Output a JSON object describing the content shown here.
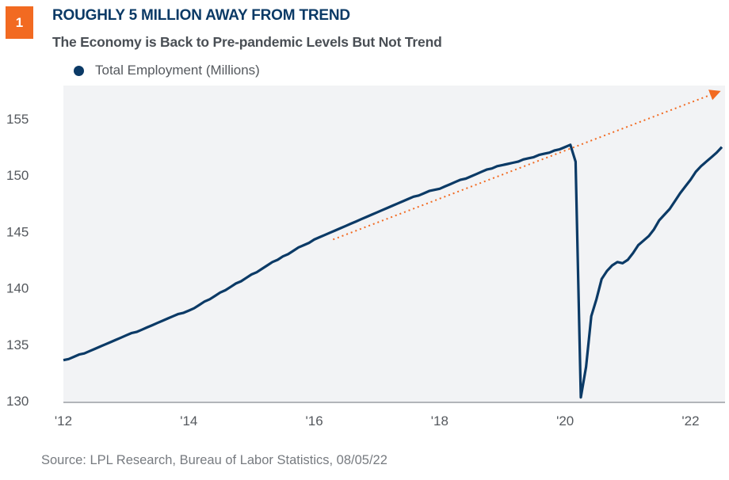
{
  "header": {
    "badge": "1",
    "title": "ROUGHLY 5 MILLION AWAY FROM TREND",
    "subtitle": "The Economy is Back to Pre-pandemic Levels But Not Trend"
  },
  "source": "Source: LPL Research, Bureau of Labor Statistics,  08/05/22",
  "colors": {
    "series": "#0b3a66",
    "trend": "#f26a21",
    "badge": "#f26a21",
    "plot_bg": "#f2f3f5"
  },
  "chart_data": {
    "type": "line",
    "title": "ROUGHLY 5 MILLION AWAY FROM TREND",
    "subtitle": "The Economy is Back to Pre-pandemic Levels But Not Trend",
    "xlabel": "",
    "ylabel": "",
    "legend": "top-left",
    "grid": false,
    "start": "2012-01",
    "frequency": "monthly",
    "xlim": [
      2012,
      2022.55
    ],
    "ylim": [
      130,
      158
    ],
    "xticks": [
      {
        "value": 2012,
        "label": "'12"
      },
      {
        "value": 2014,
        "label": "'14"
      },
      {
        "value": 2016,
        "label": "'16"
      },
      {
        "value": 2018,
        "label": "'18"
      },
      {
        "value": 2020,
        "label": "'20"
      },
      {
        "value": 2022,
        "label": "'22"
      }
    ],
    "yticks": [
      130,
      135,
      140,
      145,
      150,
      155
    ],
    "series": [
      {
        "name": "Total Employment (Millions)",
        "values": [
          133.6,
          133.7,
          133.9,
          134.1,
          134.2,
          134.4,
          134.6,
          134.8,
          135.0,
          135.2,
          135.4,
          135.6,
          135.8,
          136.0,
          136.1,
          136.3,
          136.5,
          136.7,
          136.9,
          137.1,
          137.3,
          137.5,
          137.7,
          137.8,
          138.0,
          138.2,
          138.5,
          138.8,
          139.0,
          139.3,
          139.6,
          139.8,
          140.1,
          140.4,
          140.6,
          140.9,
          141.2,
          141.4,
          141.7,
          142.0,
          142.3,
          142.5,
          142.8,
          143.0,
          143.3,
          143.6,
          143.8,
          144.0,
          144.3,
          144.5,
          144.7,
          144.9,
          145.1,
          145.3,
          145.5,
          145.7,
          145.9,
          146.1,
          146.3,
          146.5,
          146.7,
          146.9,
          147.1,
          147.3,
          147.5,
          147.7,
          147.9,
          148.1,
          148.2,
          148.4,
          148.6,
          148.7,
          148.8,
          149.0,
          149.2,
          149.4,
          149.6,
          149.7,
          149.9,
          150.1,
          150.3,
          150.5,
          150.6,
          150.8,
          150.9,
          151.0,
          151.1,
          151.2,
          151.4,
          151.5,
          151.6,
          151.8,
          151.9,
          152.0,
          152.2,
          152.3,
          152.5,
          152.7,
          151.2,
          130.3,
          133.0,
          137.5,
          139.0,
          140.8,
          141.5,
          142.0,
          142.3,
          142.2,
          142.5,
          143.1,
          143.8,
          144.2,
          144.6,
          145.2,
          146.0,
          146.5,
          147.0,
          147.7,
          148.4,
          149.0,
          149.6,
          150.3,
          150.8,
          151.2,
          151.6,
          152.0,
          152.5
        ]
      }
    ],
    "trend": {
      "from": {
        "x": 2016.3,
        "y": 144.3
      },
      "to": {
        "x": 2022.55,
        "y": 157.4
      },
      "style": "dotted-arrow"
    }
  }
}
